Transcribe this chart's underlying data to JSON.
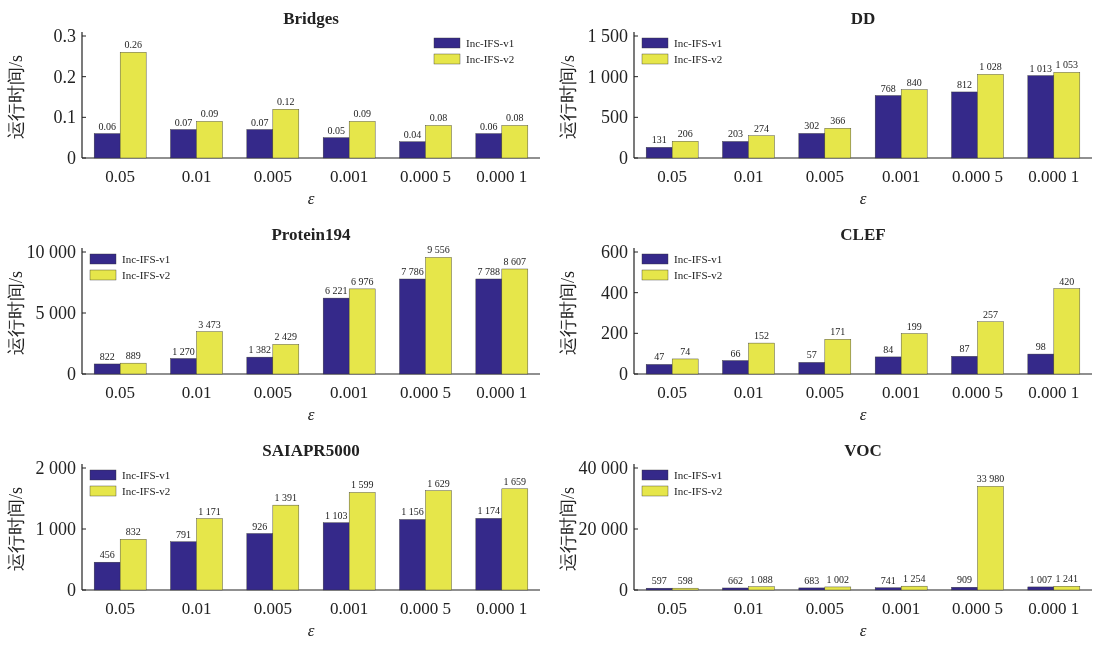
{
  "chart_data": [
    {
      "type": "bar",
      "title": "Bridges",
      "xlabel": "ε",
      "ylabel": "运行时间/s",
      "categories": [
        "0.05",
        "0.01",
        "0.005",
        "0.001",
        "0.000 5",
        "0.000 1"
      ],
      "legend": "top right",
      "data_labels": true,
      "ylim": [
        0,
        0.3
      ],
      "yticks": [
        0,
        0.1,
        0.2,
        0.3
      ],
      "series": [
        {
          "name": "Inc-IFS-v1",
          "color": "#35298a",
          "values": [
            0.06,
            0.07,
            0.07,
            0.05,
            0.04,
            0.06
          ]
        },
        {
          "name": "Inc-IFS-v2",
          "color": "#e6e64a",
          "values": [
            0.26,
            0.09,
            0.12,
            0.09,
            0.08,
            0.08
          ]
        }
      ]
    },
    {
      "type": "bar",
      "title": "DD",
      "xlabel": "ε",
      "ylabel": "运行时间/s",
      "categories": [
        "0.05",
        "0.01",
        "0.005",
        "0.001",
        "0.000 5",
        "0.000 1"
      ],
      "legend": "top left",
      "ylim": [
        0,
        1500
      ],
      "yticks": [
        0,
        500,
        {
          "value": 1000,
          "label": "1 000"
        },
        {
          "value": 1500,
          "label": "1 500"
        }
      ],
      "series": [
        {
          "name": "Inc-IFS-v1",
          "color": "#35298a",
          "values": [
            131,
            203,
            302,
            768,
            812,
            1013
          ],
          "value_labels": [
            "131",
            "203",
            "302",
            "768",
            "812",
            "1 013"
          ]
        },
        {
          "name": "Inc-IFS-v2",
          "color": "#e6e64a",
          "values": [
            206,
            274,
            366,
            840,
            1028,
            1053
          ],
          "value_labels": [
            "206",
            "274",
            "366",
            "840",
            "1 028",
            "1 053"
          ]
        }
      ]
    },
    {
      "type": "bar",
      "title": "Protein194",
      "xlabel": "ε",
      "ylabel": "运行时间/s",
      "categories": [
        "0.05",
        "0.01",
        "0.005",
        "0.001",
        "0.000 5",
        "0.000 1"
      ],
      "legend": "top left",
      "ylim": [
        0,
        10000
      ],
      "yticks": [
        0,
        {
          "value": 5000,
          "label": "5 000"
        },
        {
          "value": 10000,
          "label": "10 000"
        }
      ],
      "series": [
        {
          "name": "Inc-IFS-v1",
          "color": "#35298a",
          "values": [
            822,
            1270,
            1382,
            6221,
            7786,
            7788
          ],
          "value_labels": [
            "822",
            "1 270",
            "1 382",
            "6 221",
            "7 786",
            "7 788"
          ]
        },
        {
          "name": "Inc-IFS-v2",
          "color": "#e6e64a",
          "values": [
            889,
            3473,
            2429,
            6976,
            9556,
            8607
          ],
          "value_labels": [
            "889",
            "3 473",
            "2 429",
            "6 976",
            "9 556",
            "8 607"
          ]
        }
      ]
    },
    {
      "type": "bar",
      "title": "CLEF",
      "xlabel": "ε",
      "ylabel": "运行时间/s",
      "categories": [
        "0.05",
        "0.01",
        "0.005",
        "0.001",
        "0.000 5",
        "0.000 1"
      ],
      "legend": "top left",
      "data_labels": true,
      "ylim": [
        0,
        600
      ],
      "yticks": [
        0,
        200,
        400,
        600
      ],
      "series": [
        {
          "name": "Inc-IFS-v1",
          "color": "#35298a",
          "values": [
            47,
            66,
            57,
            84,
            87,
            98
          ]
        },
        {
          "name": "Inc-IFS-v2",
          "color": "#e6e64a",
          "values": [
            74,
            152,
            171,
            199,
            257,
            420
          ]
        }
      ]
    },
    {
      "type": "bar",
      "title": "SAIAPR5000",
      "xlabel": "ε",
      "ylabel": "运行时间/s",
      "categories": [
        "0.05",
        "0.01",
        "0.005",
        "0.001",
        "0.000 5",
        "0.000 1"
      ],
      "legend": "top left",
      "ylim": [
        0,
        2000
      ],
      "yticks": [
        0,
        {
          "value": 1000,
          "label": "1 000"
        },
        {
          "value": 2000,
          "label": "2 000"
        }
      ],
      "series": [
        {
          "name": "Inc-IFS-v1",
          "color": "#35298a",
          "values": [
            456,
            791,
            926,
            1103,
            1156,
            1174
          ],
          "value_labels": [
            "456",
            "791",
            "926",
            "1 103",
            "1 156",
            "1 174"
          ]
        },
        {
          "name": "Inc-IFS-v2",
          "color": "#e6e64a",
          "values": [
            832,
            1171,
            1391,
            1599,
            1629,
            1659
          ],
          "value_labels": [
            "832",
            "1 171",
            "1 391",
            "1 599",
            "1 629",
            "1 659"
          ]
        }
      ]
    },
    {
      "type": "bar",
      "title": "VOC",
      "xlabel": "ε",
      "ylabel": "运行时间/s",
      "categories": [
        "0.05",
        "0.01",
        "0.005",
        "0.001",
        "0.000 5",
        "0.000 1"
      ],
      "legend": "top left",
      "ylim": [
        0,
        40000
      ],
      "yticks": [
        0,
        {
          "value": 20000,
          "label": "20 000"
        },
        {
          "value": 40000,
          "label": "40 000"
        }
      ],
      "series": [
        {
          "name": "Inc-IFS-v1",
          "color": "#35298a",
          "values": [
            597,
            662,
            683,
            741,
            909,
            1007
          ],
          "value_labels": [
            "597",
            "662",
            "683",
            "741",
            "909",
            "1 007"
          ]
        },
        {
          "name": "Inc-IFS-v2",
          "color": "#e6e64a",
          "values": [
            598,
            1088,
            1002,
            1254,
            33980,
            1241
          ],
          "value_labels": [
            "598",
            "1 088",
            "1 002",
            "1 254",
            "33 980",
            "1 241"
          ]
        }
      ]
    }
  ]
}
